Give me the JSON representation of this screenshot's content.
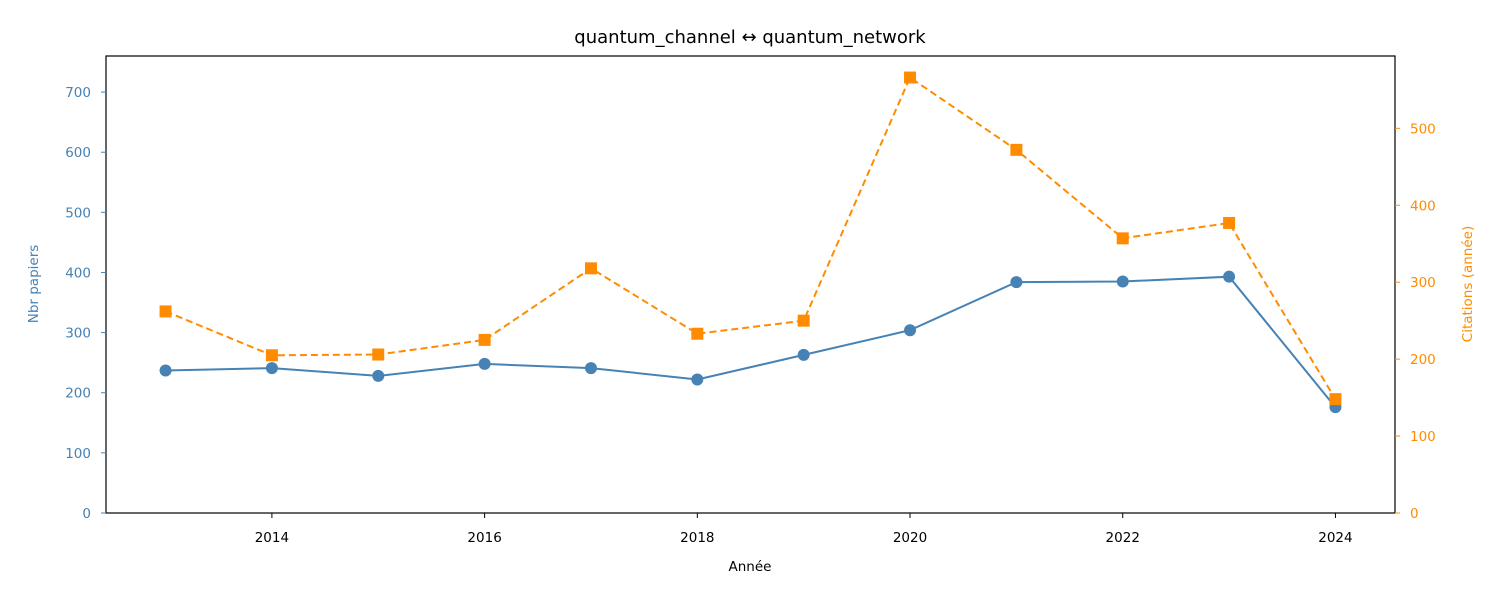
{
  "chart_data": {
    "type": "line",
    "title": "quantum_channel  ↔  quantum_network",
    "xlabel": "Année",
    "ylabel_left": "Nbr papiers",
    "ylabel_right": "Citations (année)",
    "x": [
      2013,
      2014,
      2015,
      2016,
      2017,
      2018,
      2019,
      2020,
      2021,
      2022,
      2023,
      2024
    ],
    "xlim": [
      2012.44,
      2024.56
    ],
    "xticks": [
      2014,
      2016,
      2018,
      2020,
      2022,
      2024
    ],
    "ylim_left": [
      0,
      760
    ],
    "yticks_left": [
      0,
      100,
      200,
      300,
      400,
      500,
      600,
      700
    ],
    "ylim_right": [
      0,
      594
    ],
    "yticks_right": [
      0,
      100,
      200,
      300,
      400,
      500
    ],
    "grid": false,
    "series": [
      {
        "axis": "left",
        "color": "#4682b4",
        "marker": "circle",
        "linestyle": "solid",
        "values": [
          237,
          241,
          228,
          248,
          241,
          222,
          263,
          304,
          384,
          385,
          393,
          176
        ]
      },
      {
        "axis": "right",
        "color": "#ff8c00",
        "marker": "square",
        "linestyle": "dashed",
        "values": [
          262,
          205,
          206,
          225,
          318,
          233,
          250,
          566,
          472,
          357,
          377,
          148
        ]
      }
    ]
  }
}
